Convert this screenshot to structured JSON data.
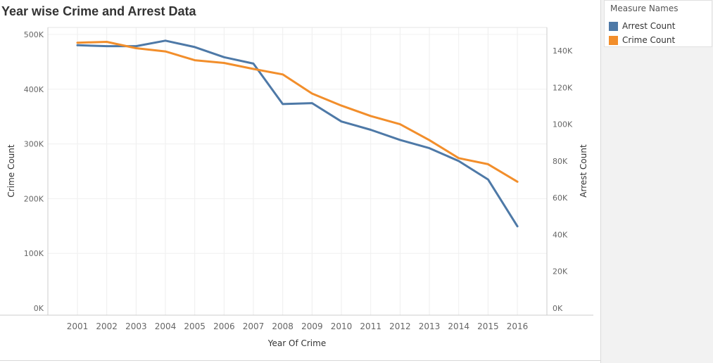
{
  "chart_data": {
    "type": "line",
    "title": "Year wise Crime and Arrest Data",
    "xlabel": "Year Of Crime",
    "x": [
      "2001",
      "2002",
      "2003",
      "2004",
      "2005",
      "2006",
      "2007",
      "2008",
      "2009",
      "2010",
      "2011",
      "2012",
      "2013",
      "2014",
      "2015",
      "2016"
    ],
    "y_left": {
      "label": "Crime Count",
      "range": [
        0,
        500000
      ],
      "ticks": [
        0,
        100000,
        200000,
        300000,
        400000,
        500000
      ],
      "tick_labels": [
        "0K",
        "100K",
        "200K",
        "300K",
        "400K",
        "500K"
      ]
    },
    "y_right": {
      "label": "Arrest Count",
      "range": [
        0,
        150000
      ],
      "ticks": [
        0,
        20000,
        40000,
        60000,
        80000,
        100000,
        120000,
        140000
      ],
      "tick_labels": [
        "0K",
        "20K",
        "40K",
        "60K",
        "80K",
        "100K",
        "120K",
        "140K"
      ]
    },
    "series": [
      {
        "name": "Arrest Count",
        "axis": "right",
        "color": "#4e79a7",
        "values": [
          143000,
          142500,
          142500,
          145500,
          142000,
          136500,
          133000,
          111000,
          111500,
          101500,
          97000,
          91500,
          87000,
          80000,
          70000,
          44500
        ]
      },
      {
        "name": "Crime Count",
        "axis": "left",
        "color": "#f28e2b",
        "values": [
          485000,
          486500,
          475000,
          469000,
          453000,
          448000,
          437000,
          427000,
          392000,
          370000,
          351000,
          336000,
          307000,
          274000,
          263000,
          231000
        ]
      }
    ],
    "grid": true,
    "legend": {
      "title": "Measure Names",
      "position": "top-right",
      "items": [
        {
          "label": "Arrest Count",
          "color": "#4e79a7"
        },
        {
          "label": "Crime Count",
          "color": "#f28e2b"
        }
      ]
    }
  }
}
